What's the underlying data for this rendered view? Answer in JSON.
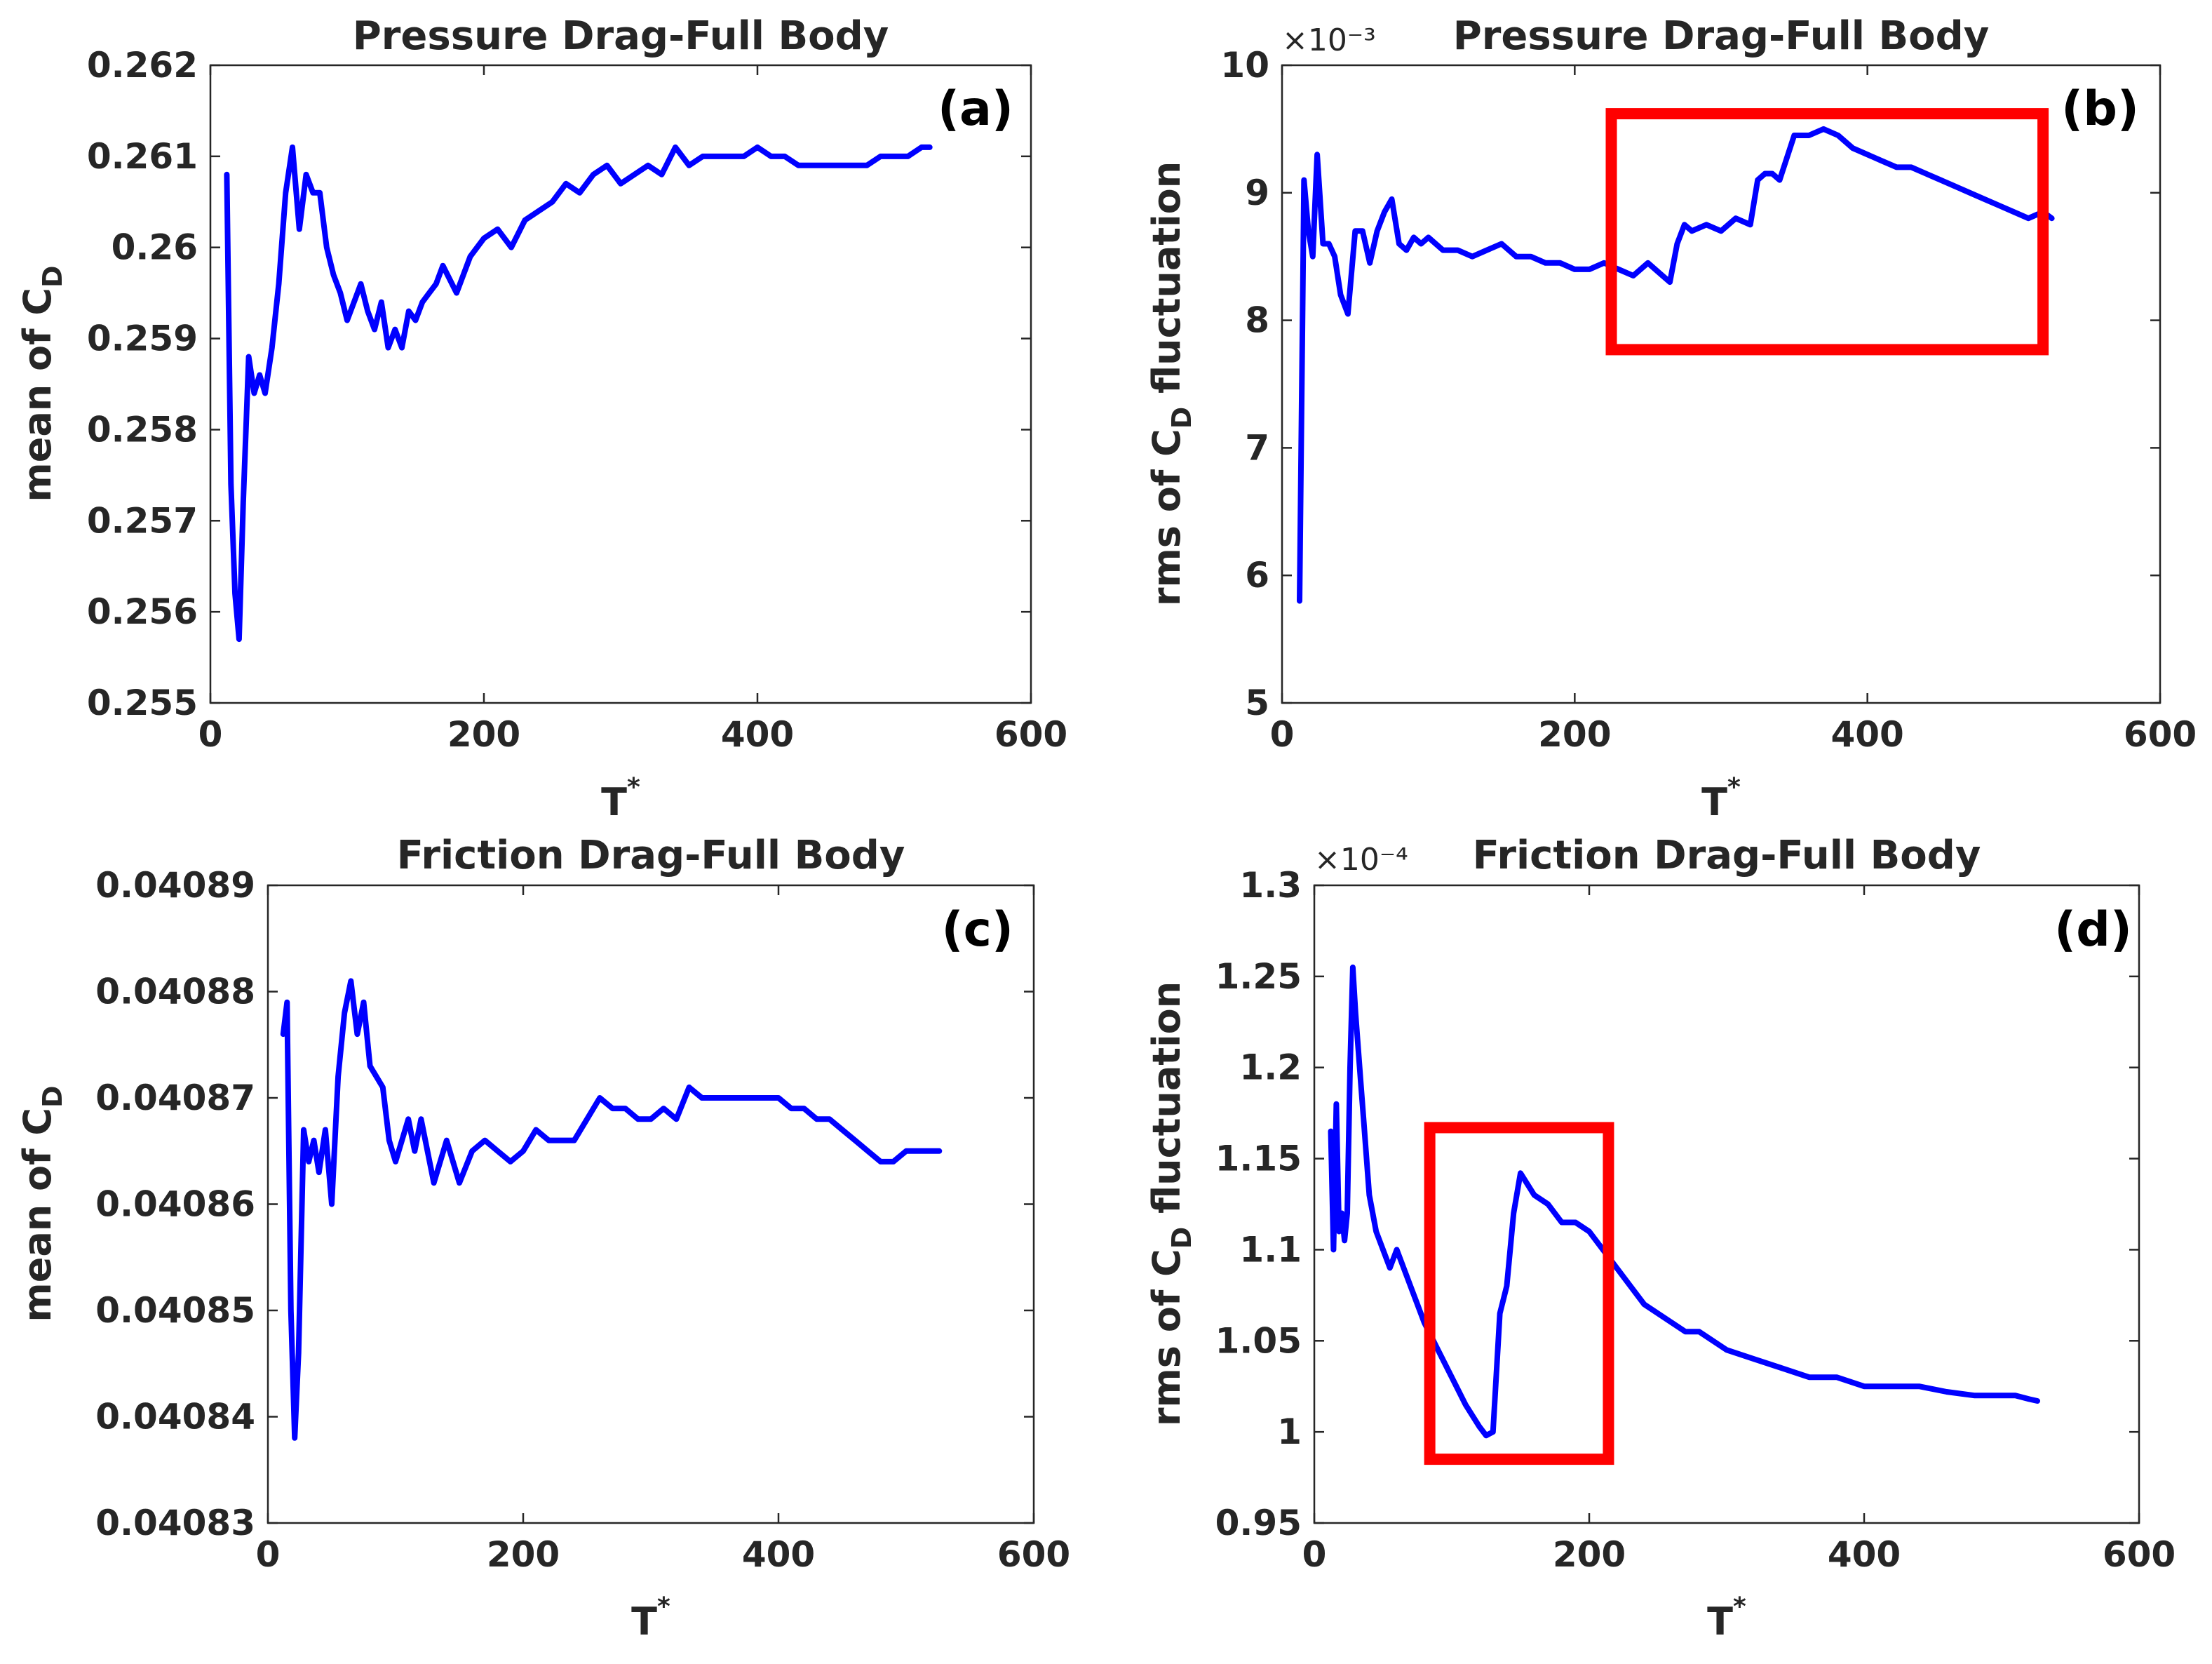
{
  "colors": {
    "line": "#0000ff",
    "highlight": "#ff0000",
    "axis": "#262626"
  },
  "chart_data": [
    {
      "type": "line",
      "panel": "(a)",
      "title": "Pressure Drag-Full Body",
      "xlabel": "T",
      "xlabel_sup": "*",
      "ylabel_pre": "mean of C",
      "ylabel_sub": "D",
      "ylabel_post": "",
      "exponent": "",
      "xlim": [
        0,
        600
      ],
      "ylim": [
        0.255,
        0.262
      ],
      "xticks": [
        0,
        200,
        400,
        600
      ],
      "xtick_labels": [
        "0",
        "200",
        "400",
        "600"
      ],
      "yticks": [
        0.255,
        0.256,
        0.257,
        0.258,
        0.259,
        0.26,
        0.261,
        0.262
      ],
      "ytick_labels": [
        "0.255",
        "0.256",
        "0.257",
        "0.258",
        "0.259",
        "0.26",
        "0.261",
        "0.262"
      ],
      "x": [
        12,
        15,
        18,
        21,
        24,
        28,
        32,
        36,
        40,
        45,
        50,
        55,
        60,
        65,
        70,
        75,
        80,
        85,
        90,
        95,
        100,
        105,
        110,
        115,
        120,
        125,
        130,
        135,
        140,
        145,
        150,
        155,
        160,
        165,
        170,
        180,
        190,
        200,
        210,
        220,
        230,
        240,
        250,
        260,
        270,
        280,
        290,
        300,
        310,
        320,
        330,
        340,
        350,
        360,
        370,
        380,
        390,
        400,
        410,
        420,
        430,
        440,
        450,
        460,
        470,
        480,
        490,
        500,
        510,
        520,
        526
      ],
      "y": [
        0.2608,
        0.2574,
        0.2562,
        0.2557,
        0.2572,
        0.2588,
        0.2584,
        0.2586,
        0.2584,
        0.2589,
        0.2596,
        0.2606,
        0.2611,
        0.2602,
        0.2608,
        0.2606,
        0.2606,
        0.26,
        0.2597,
        0.2595,
        0.2592,
        0.2594,
        0.2596,
        0.2593,
        0.2591,
        0.2594,
        0.2589,
        0.2591,
        0.2589,
        0.2593,
        0.2592,
        0.2594,
        0.2595,
        0.2596,
        0.2598,
        0.2595,
        0.2599,
        0.2601,
        0.2602,
        0.26,
        0.2603,
        0.2604,
        0.2605,
        0.2607,
        0.2606,
        0.2608,
        0.2609,
        0.2607,
        0.2608,
        0.2609,
        0.2608,
        0.2611,
        0.2609,
        0.261,
        0.261,
        0.261,
        0.261,
        0.2611,
        0.261,
        0.261,
        0.2609,
        0.2609,
        0.2609,
        0.2609,
        0.2609,
        0.2609,
        0.261,
        0.261,
        0.261,
        0.2611,
        0.2611
      ],
      "highlight_box": null
    },
    {
      "type": "line",
      "panel": "(b)",
      "title": "Pressure Drag-Full Body",
      "xlabel": "T",
      "xlabel_sup": "*",
      "ylabel_pre": "rms of C",
      "ylabel_sub": "D",
      "ylabel_post": " fluctuation",
      "exponent": "×10⁻³",
      "xlim": [
        0,
        600
      ],
      "ylim": [
        5,
        10
      ],
      "xticks": [
        0,
        200,
        400,
        600
      ],
      "xtick_labels": [
        "0",
        "200",
        "400",
        "600"
      ],
      "yticks": [
        5,
        6,
        7,
        8,
        9,
        10
      ],
      "ytick_labels": [
        "5",
        "6",
        "7",
        "8",
        "9",
        "10"
      ],
      "x": [
        12,
        15,
        18,
        21,
        24,
        28,
        32,
        36,
        40,
        45,
        50,
        55,
        60,
        65,
        70,
        75,
        80,
        85,
        90,
        95,
        100,
        110,
        120,
        130,
        140,
        150,
        160,
        170,
        180,
        190,
        200,
        210,
        220,
        230,
        240,
        250,
        260,
        265,
        270,
        275,
        280,
        290,
        300,
        310,
        320,
        325,
        330,
        335,
        340,
        350,
        360,
        370,
        380,
        390,
        400,
        410,
        420,
        430,
        440,
        450,
        460,
        470,
        480,
        490,
        500,
        510,
        520,
        526
      ],
      "y": [
        5.8,
        9.1,
        8.7,
        8.5,
        9.3,
        8.6,
        8.6,
        8.5,
        8.2,
        8.05,
        8.7,
        8.7,
        8.45,
        8.7,
        8.85,
        8.95,
        8.6,
        8.55,
        8.65,
        8.6,
        8.65,
        8.55,
        8.55,
        8.5,
        8.55,
        8.6,
        8.5,
        8.5,
        8.45,
        8.45,
        8.4,
        8.4,
        8.45,
        8.4,
        8.35,
        8.45,
        8.35,
        8.3,
        8.6,
        8.75,
        8.7,
        8.75,
        8.7,
        8.8,
        8.75,
        9.1,
        9.15,
        9.15,
        9.1,
        9.45,
        9.45,
        9.5,
        9.45,
        9.35,
        9.3,
        9.25,
        9.2,
        9.2,
        9.15,
        9.1,
        9.05,
        9.0,
        8.95,
        8.9,
        8.85,
        8.8,
        8.85,
        8.8
      ],
      "highlight_box": {
        "x0": 225,
        "x1": 520,
        "y0": 7.77,
        "y1": 9.62
      }
    },
    {
      "type": "line",
      "panel": "(c)",
      "title": "Friction Drag-Full Body",
      "xlabel": "T",
      "xlabel_sup": "*",
      "ylabel_pre": "mean of C",
      "ylabel_sub": "D",
      "ylabel_post": "",
      "exponent": "",
      "xlim": [
        0,
        600
      ],
      "ylim": [
        0.04083,
        0.04089
      ],
      "xticks": [
        0,
        200,
        400,
        600
      ],
      "xtick_labels": [
        "0",
        "200",
        "400",
        "600"
      ],
      "yticks": [
        0.04083,
        0.04084,
        0.04085,
        0.04086,
        0.04087,
        0.04088,
        0.04089
      ],
      "ytick_labels": [
        "0.04083",
        "0.04084",
        "0.04085",
        "0.04086",
        "0.04087",
        "0.04088",
        "0.04089"
      ],
      "x": [
        12,
        15,
        18,
        21,
        24,
        28,
        32,
        36,
        40,
        45,
        50,
        55,
        60,
        65,
        70,
        75,
        80,
        85,
        90,
        95,
        100,
        105,
        110,
        115,
        120,
        130,
        140,
        150,
        160,
        170,
        180,
        190,
        200,
        210,
        220,
        230,
        240,
        250,
        260,
        270,
        280,
        290,
        300,
        310,
        320,
        330,
        340,
        350,
        360,
        370,
        380,
        390,
        400,
        410,
        420,
        430,
        440,
        450,
        460,
        470,
        480,
        490,
        500,
        510,
        520,
        526
      ],
      "y": [
        0.040876,
        0.040879,
        0.04085,
        0.040838,
        0.040846,
        0.040867,
        0.040864,
        0.040866,
        0.040863,
        0.040867,
        0.04086,
        0.040872,
        0.040878,
        0.040881,
        0.040876,
        0.040879,
        0.040873,
        0.040872,
        0.040871,
        0.040866,
        0.040864,
        0.040866,
        0.040868,
        0.040865,
        0.040868,
        0.040862,
        0.040866,
        0.040862,
        0.040865,
        0.040866,
        0.040865,
        0.040864,
        0.040865,
        0.040867,
        0.040866,
        0.040866,
        0.040866,
        0.040868,
        0.04087,
        0.040869,
        0.040869,
        0.040868,
        0.040868,
        0.040869,
        0.040868,
        0.040871,
        0.04087,
        0.04087,
        0.04087,
        0.04087,
        0.04087,
        0.04087,
        0.04087,
        0.040869,
        0.040869,
        0.040868,
        0.040868,
        0.040867,
        0.040866,
        0.040865,
        0.040864,
        0.040864,
        0.040865,
        0.040865,
        0.040865,
        0.040865
      ],
      "highlight_box": null
    },
    {
      "type": "line",
      "panel": "(d)",
      "title": "Friction Drag-Full Body",
      "xlabel": "T",
      "xlabel_sup": "*",
      "ylabel_pre": "rms of C",
      "ylabel_sub": "D",
      "ylabel_post": " fluctuation",
      "exponent": "×10⁻⁴",
      "xlim": [
        0,
        600
      ],
      "ylim": [
        0.95,
        1.3
      ],
      "xticks": [
        0,
        200,
        400,
        600
      ],
      "xtick_labels": [
        "0",
        "200",
        "400",
        "600"
      ],
      "yticks": [
        0.95,
        1.0,
        1.05,
        1.1,
        1.15,
        1.2,
        1.25,
        1.3
      ],
      "ytick_labels": [
        "0.95",
        "1",
        "1.05",
        "1.1",
        "1.15",
        "1.2",
        "1.25",
        "1.3"
      ],
      "x": [
        12,
        14,
        16,
        18,
        20,
        22,
        24,
        26,
        28,
        30,
        32,
        34,
        36,
        38,
        40,
        45,
        50,
        55,
        60,
        65,
        70,
        75,
        80,
        90,
        100,
        110,
        120,
        125,
        130,
        135,
        140,
        145,
        150,
        160,
        170,
        180,
        190,
        200,
        210,
        220,
        230,
        240,
        250,
        260,
        270,
        280,
        290,
        300,
        320,
        340,
        360,
        380,
        400,
        420,
        440,
        460,
        480,
        500,
        510,
        520,
        526
      ],
      "y": [
        1.165,
        1.1,
        1.18,
        1.11,
        1.12,
        1.105,
        1.12,
        1.2,
        1.255,
        1.23,
        1.21,
        1.19,
        1.17,
        1.15,
        1.13,
        1.11,
        1.1,
        1.09,
        1.1,
        1.09,
        1.08,
        1.07,
        1.06,
        1.045,
        1.03,
        1.015,
        1.003,
        0.998,
        1.0,
        1.065,
        1.08,
        1.12,
        1.142,
        1.13,
        1.125,
        1.115,
        1.115,
        1.11,
        1.1,
        1.09,
        1.08,
        1.07,
        1.065,
        1.06,
        1.055,
        1.055,
        1.05,
        1.045,
        1.04,
        1.035,
        1.03,
        1.03,
        1.025,
        1.025,
        1.025,
        1.022,
        1.02,
        1.02,
        1.02,
        1.018,
        1.017
      ],
      "highlight_box": {
        "x0": 84,
        "x1": 214,
        "y0": 0.985,
        "y1": 1.167
      }
    }
  ]
}
